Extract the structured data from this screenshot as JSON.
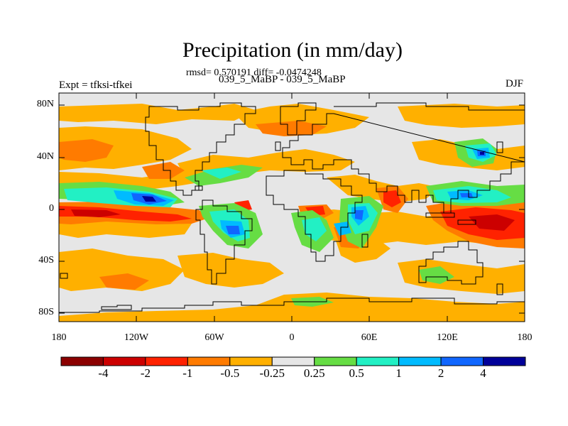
{
  "title": "Precipitation (in mm/day)",
  "stats_text": "rmsd= 0.570191 diff= -0.0474248",
  "period_text": "039_5_MaBP - 039_5_MaBP",
  "experiment_text": "Expt = tfksi-tfkei",
  "season_text": "DJF",
  "map": {
    "projection": "cylindrical-equidistant",
    "background_land_color": "#e6e6e6",
    "lat_ticks": [
      "80N",
      "40N",
      "0",
      "40S",
      "80S"
    ],
    "lon_ticks": [
      "180",
      "120W",
      "60W",
      "0",
      "60E",
      "120E",
      "180"
    ]
  },
  "colorbar": {
    "colors": [
      "#8b0000",
      "#cc0000",
      "#ff2200",
      "#ff7b00",
      "#ffb000",
      "#e6e6e6",
      "#66dd44",
      "#22f0c4",
      "#00bbff",
      "#1066ff",
      "#000099"
    ],
    "labels": [
      "-4",
      "-2",
      "-1",
      "-0.5",
      "-0.25",
      "0.25",
      "0.5",
      "1",
      "2",
      "4"
    ]
  }
}
